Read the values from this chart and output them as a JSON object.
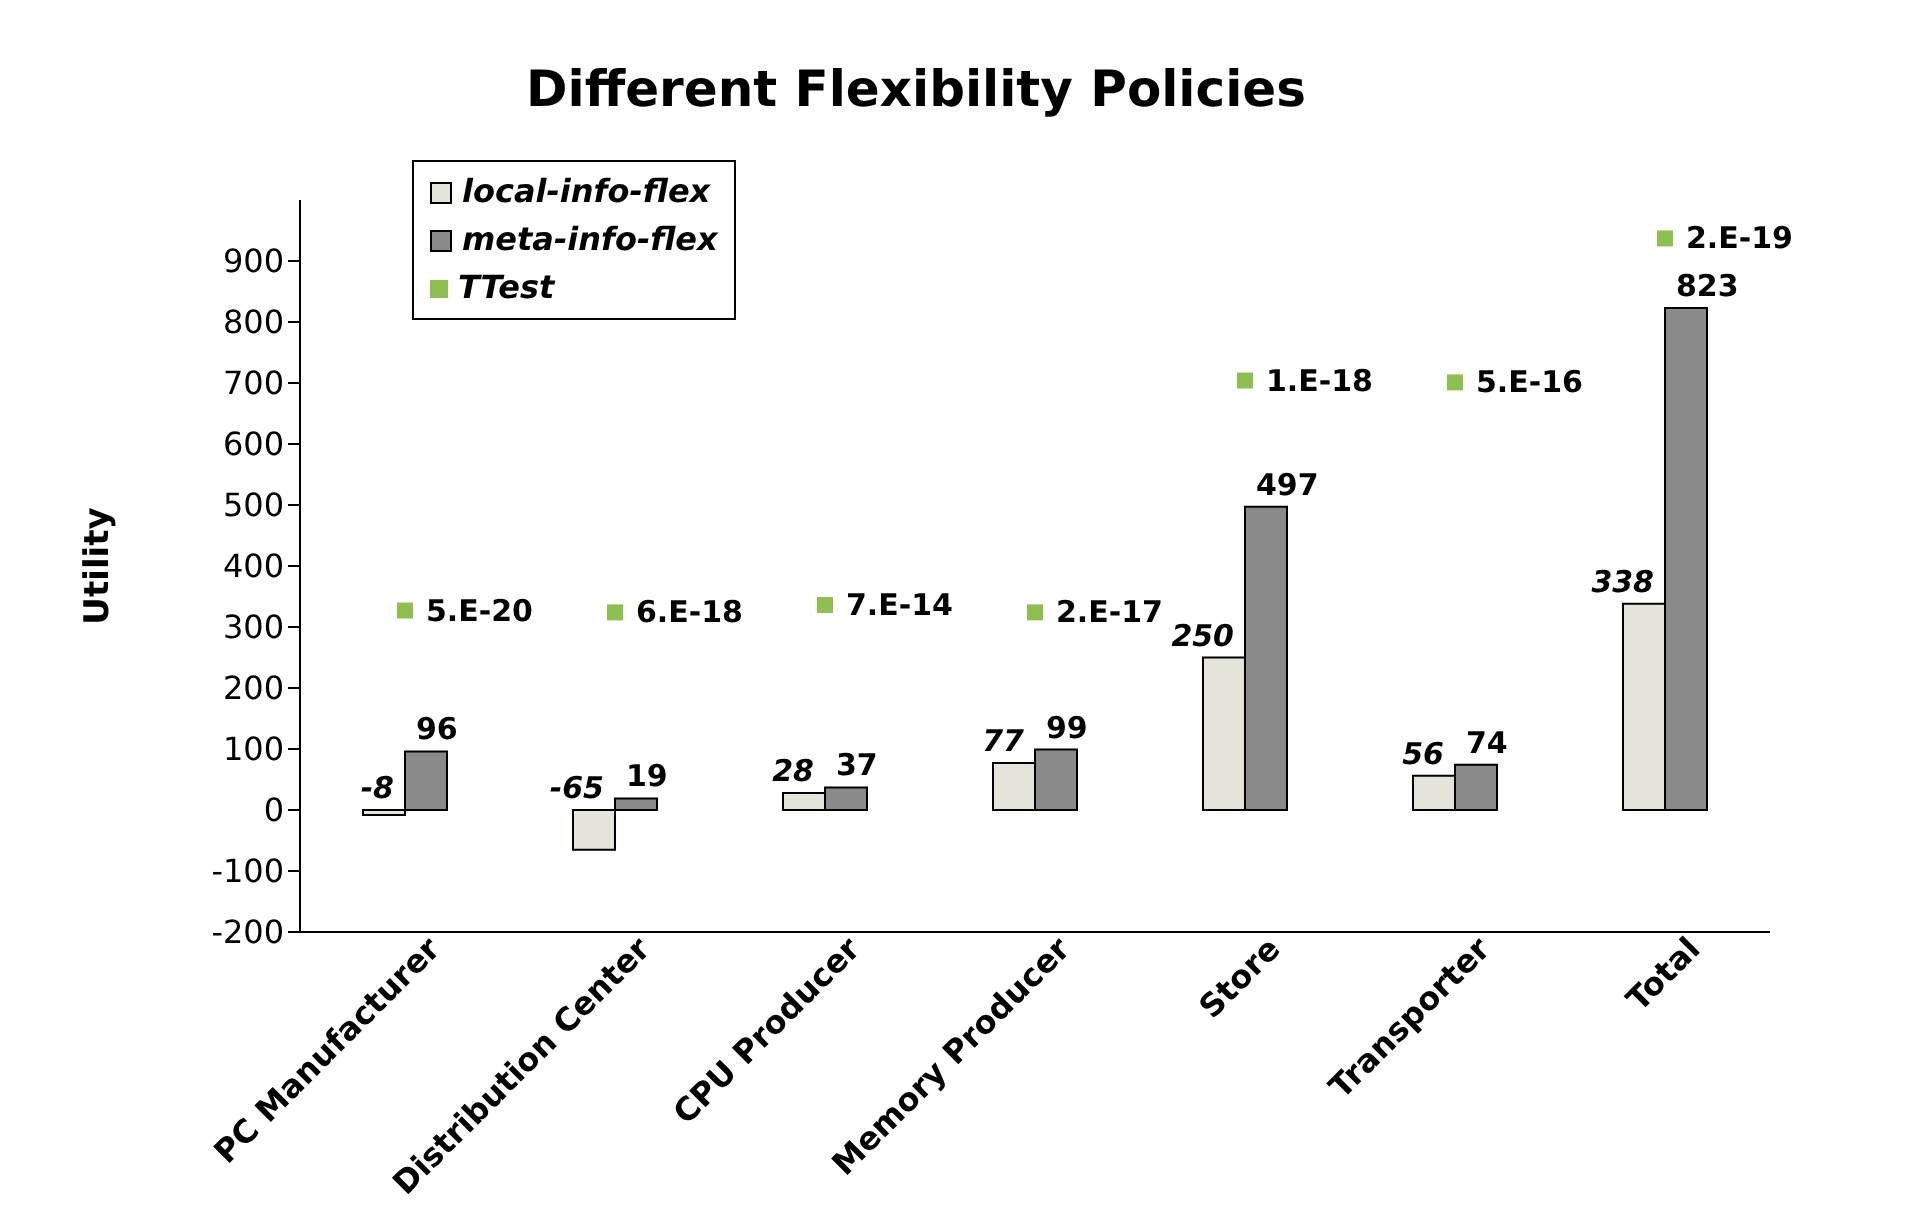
{
  "chart_data": {
    "type": "bar",
    "title": "Different Flexibility Policies",
    "ylabel": "Utility",
    "categories": [
      "PC Manufacturer",
      "Distribution Center",
      "CPU Producer",
      "Memory Producer",
      "Store",
      "Transporter",
      "Total"
    ],
    "series": [
      {
        "name": "local-info-flex",
        "color": "#e4e4da",
        "values": [
          -8,
          -65,
          28,
          77,
          250,
          56,
          338
        ]
      },
      {
        "name": "meta-info-flex",
        "color": "#8a8a8a",
        "values": [
          96,
          19,
          37,
          99,
          497,
          74,
          823
        ]
      },
      {
        "name": "TTest",
        "type": "scatter",
        "color": "#8dc04f",
        "values": [
          327,
          324,
          336,
          324,
          704,
          701,
          937
        ],
        "value_labels": [
          "5.E-20",
          "6.E-18",
          "7.E-14",
          "2.E-17",
          "1.E-18",
          "5.E-16",
          "2.E-19"
        ]
      }
    ],
    "data_labels": true,
    "ylim": [
      -200,
      1000
    ],
    "yticks": [
      -200,
      -100,
      0,
      100,
      200,
      300,
      400,
      500,
      600,
      700,
      800,
      900
    ],
    "grid": false,
    "legend": "top left",
    "marker": "square"
  }
}
